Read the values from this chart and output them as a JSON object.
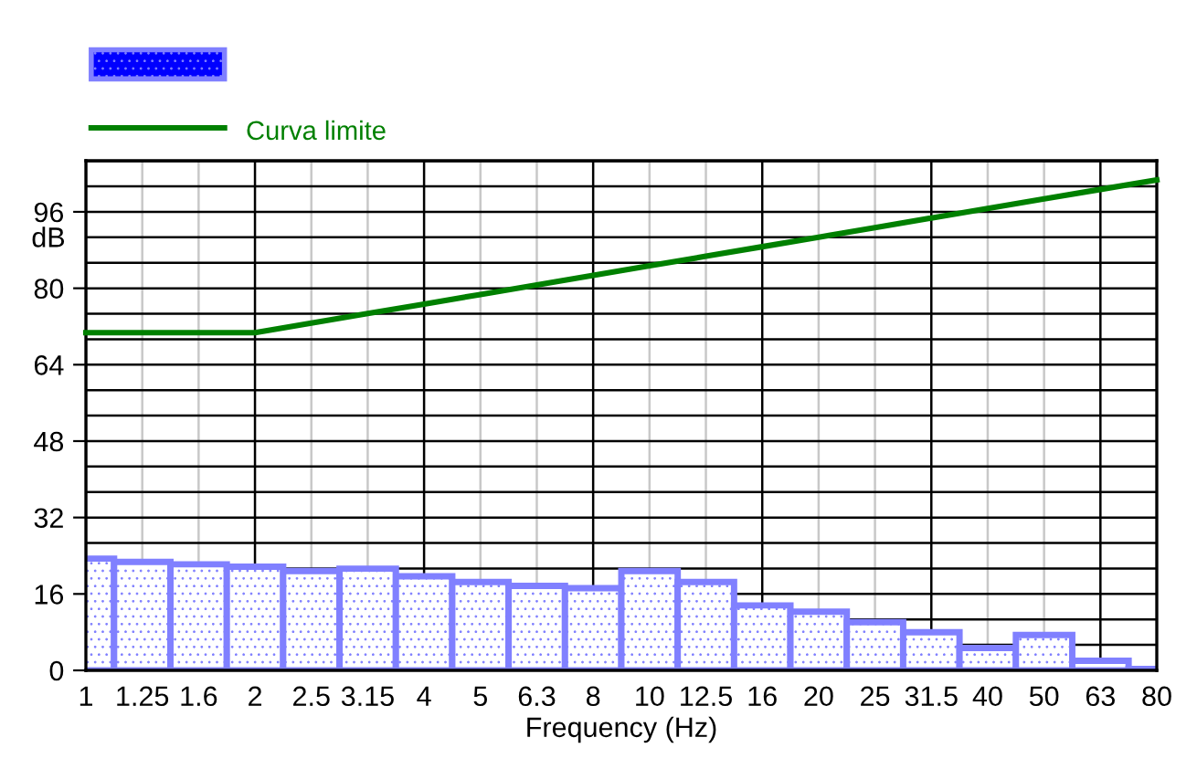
{
  "chart_data": {
    "type": "bar",
    "xlabel": "Frequency (Hz)",
    "ylabel": "dB",
    "categories": [
      "1",
      "1.25",
      "1.6",
      "2",
      "2.5",
      "3.15",
      "4",
      "5",
      "6.3",
      "8",
      "10",
      "12.5",
      "16",
      "20",
      "25",
      "31.5",
      "40",
      "50",
      "63",
      "80"
    ],
    "series": [
      {
        "color": "#8080ff",
        "values": [
          23.4,
          22.7,
          22.2,
          21.7,
          20.8,
          21.3,
          19.7,
          18.5,
          17.7,
          17.2,
          20.8,
          18.5,
          13.6,
          12.3,
          10.1,
          8.0,
          4.7,
          7.4,
          2.0,
          0.3
        ]
      },
      {
        "type": "line",
        "name": "Curva limite",
        "color": "#008000",
        "values": [
          70.7,
          70.7,
          70.7,
          70.7,
          72.7,
          74.7,
          76.7,
          78.7,
          80.7,
          82.7,
          84.7,
          86.7,
          88.7,
          90.7,
          92.7,
          94.7,
          96.7,
          98.7,
          100.7,
          102.7
        ]
      }
    ],
    "ylim": [
      0,
      106.7
    ],
    "yticks": [
      0,
      16,
      32,
      48,
      64,
      80,
      96
    ],
    "grid": true,
    "legend": "top left",
    "line_style": "solid",
    "marker": "none"
  }
}
